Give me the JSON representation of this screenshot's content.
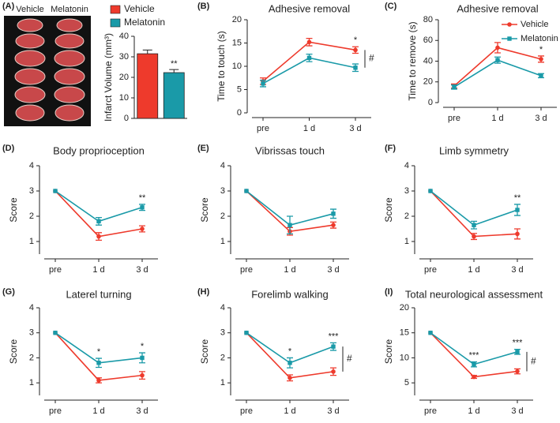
{
  "chart_data": [
    {
      "type": "bar",
      "panel": "(A)",
      "image_labels": [
        "Vehicle",
        "Melatonin"
      ],
      "y_label": "Infarct Volume (mm³)",
      "legend": "top",
      "series": [
        {
          "name": "Vehicle",
          "color": "#ee3a2c",
          "values": [
            31.5
          ],
          "errors": [
            1.8
          ]
        },
        {
          "name": "Melatonin",
          "color": "#1a9aa8",
          "values": [
            22.3
          ],
          "errors": [
            1.5
          ]
        }
      ],
      "significance": [
        null,
        "**"
      ],
      "ylim": [
        0,
        40
      ],
      "yticks": [
        0,
        10,
        20,
        30,
        40
      ]
    },
    {
      "type": "line",
      "panel": "(B)",
      "title": "Adhesive removal",
      "y_label": "Time to touch (s)",
      "categories": [
        "pre",
        "1 d",
        "3 d"
      ],
      "series": [
        {
          "name": "Vehicle",
          "color": "#ee3a2c",
          "values": [
            6.8,
            15.2,
            13.5
          ],
          "errors": [
            0.7,
            0.8,
            0.7
          ]
        },
        {
          "name": "Melatonin",
          "color": "#1a9aa8",
          "values": [
            6.3,
            11.8,
            9.7
          ],
          "errors": [
            0.7,
            0.8,
            0.8
          ]
        }
      ],
      "significance": [
        null,
        null,
        "*"
      ],
      "group_significance": "#",
      "ylim": [
        0,
        20
      ],
      "yticks": [
        0,
        5,
        10,
        15,
        20
      ]
    },
    {
      "type": "line",
      "panel": "(C)",
      "title": "Adhesive removal",
      "y_label": "Time to remove (s)",
      "categories": [
        "pre",
        "1 d",
        "3 d"
      ],
      "legend": "top-right",
      "series": [
        {
          "name": "Vehicle",
          "color": "#ee3a2c",
          "values": [
            16,
            53,
            42
          ],
          "errors": [
            2,
            5,
            3
          ]
        },
        {
          "name": "Melatonin",
          "color": "#1a9aa8",
          "values": [
            15,
            41,
            26
          ],
          "errors": [
            2,
            3,
            2
          ]
        }
      ],
      "significance": [
        null,
        null,
        "*"
      ],
      "ylim": [
        0,
        80
      ],
      "yticks": [
        0,
        20,
        40,
        60,
        80
      ]
    },
    {
      "type": "line",
      "panel": "(D)",
      "title": "Body proprioception",
      "y_label": "Score",
      "categories": [
        "pre",
        "1 d",
        "3 d"
      ],
      "series": [
        {
          "name": "Vehicle",
          "color": "#ee3a2c",
          "values": [
            3,
            1.2,
            1.5
          ],
          "errors": [
            0,
            0.15,
            0.12
          ]
        },
        {
          "name": "Melatonin",
          "color": "#1a9aa8",
          "values": [
            3,
            1.8,
            2.35
          ],
          "errors": [
            0,
            0.15,
            0.12
          ]
        }
      ],
      "significance": [
        null,
        null,
        "**"
      ],
      "ylim": [
        0.5,
        4
      ],
      "yticks": [
        1,
        2,
        3,
        4
      ]
    },
    {
      "type": "line",
      "panel": "(E)",
      "title": "Vibrissas touch",
      "y_label": "Score",
      "categories": [
        "pre",
        "1 d",
        "3 d"
      ],
      "series": [
        {
          "name": "Vehicle",
          "color": "#ee3a2c",
          "values": [
            3,
            1.4,
            1.65
          ],
          "errors": [
            0,
            0.15,
            0.12
          ]
        },
        {
          "name": "Melatonin",
          "color": "#1a9aa8",
          "values": [
            3,
            1.65,
            2.1
          ],
          "errors": [
            0,
            0.35,
            0.18
          ]
        }
      ],
      "ylim": [
        0.5,
        4
      ],
      "yticks": [
        1,
        2,
        3,
        4
      ]
    },
    {
      "type": "line",
      "panel": "(F)",
      "title": "Limb symmetry",
      "y_label": "Score",
      "categories": [
        "pre",
        "1 d",
        "3 d"
      ],
      "series": [
        {
          "name": "Vehicle",
          "color": "#ee3a2c",
          "values": [
            3,
            1.2,
            1.3
          ],
          "errors": [
            0,
            0.12,
            0.2
          ]
        },
        {
          "name": "Melatonin",
          "color": "#1a9aa8",
          "values": [
            3,
            1.65,
            2.25
          ],
          "errors": [
            0,
            0.15,
            0.22
          ]
        }
      ],
      "significance": [
        null,
        null,
        "**"
      ],
      "ylim": [
        0.5,
        4
      ],
      "yticks": [
        1,
        2,
        3,
        4
      ]
    },
    {
      "type": "line",
      "panel": "(G)",
      "title": "Laterel turning",
      "y_label": "Score",
      "categories": [
        "pre",
        "1 d",
        "3 d"
      ],
      "series": [
        {
          "name": "Vehicle",
          "color": "#ee3a2c",
          "values": [
            3,
            1.1,
            1.3
          ],
          "errors": [
            0,
            0.1,
            0.15
          ]
        },
        {
          "name": "Melatonin",
          "color": "#1a9aa8",
          "values": [
            3,
            1.8,
            2.0
          ],
          "errors": [
            0,
            0.18,
            0.2
          ]
        }
      ],
      "significance": [
        null,
        "*",
        "*"
      ],
      "ylim": [
        0.5,
        4
      ],
      "yticks": [
        1,
        2,
        3,
        4
      ]
    },
    {
      "type": "line",
      "panel": "(H)",
      "title": "Forelimb walking",
      "y_label": "Score",
      "categories": [
        "pre",
        "1 d",
        "3 d"
      ],
      "series": [
        {
          "name": "Vehicle",
          "color": "#ee3a2c",
          "values": [
            3,
            1.2,
            1.45
          ],
          "errors": [
            0,
            0.12,
            0.15
          ]
        },
        {
          "name": "Melatonin",
          "color": "#1a9aa8",
          "values": [
            3,
            1.8,
            2.45
          ],
          "errors": [
            0,
            0.2,
            0.15
          ]
        }
      ],
      "significance": [
        null,
        "*",
        "***"
      ],
      "group_significance": "#",
      "ylim": [
        0.5,
        4
      ],
      "yticks": [
        1,
        2,
        3,
        4
      ]
    },
    {
      "type": "line",
      "panel": "(I)",
      "title": "Total neurological assessment",
      "y_label": "Score",
      "categories": [
        "pre",
        "1 d",
        "3 d"
      ],
      "series": [
        {
          "name": "Vehicle",
          "color": "#ee3a2c",
          "values": [
            15,
            6.2,
            7.3
          ],
          "errors": [
            0,
            0.3,
            0.5
          ]
        },
        {
          "name": "Melatonin",
          "color": "#1a9aa8",
          "values": [
            15,
            8.7,
            11.2
          ],
          "errors": [
            0,
            0.5,
            0.5
          ]
        }
      ],
      "significance": [
        null,
        "***",
        "***"
      ],
      "group_significance": "#",
      "ylim": [
        2.5,
        20
      ],
      "yticks": [
        5,
        10,
        15,
        20
      ]
    }
  ]
}
